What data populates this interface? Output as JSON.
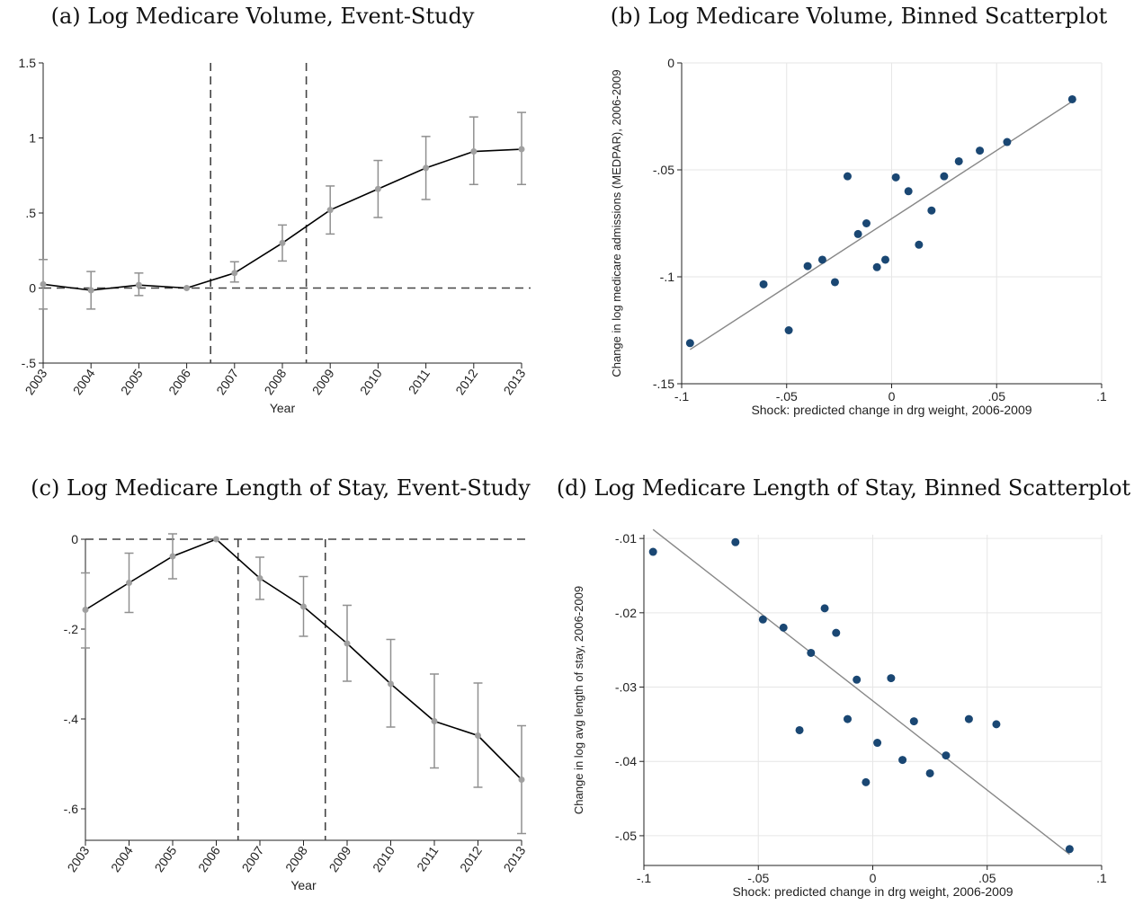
{
  "chart_data": [
    {
      "id": "a",
      "type": "line",
      "title": "(a) Log Medicare Volume, Event-Study",
      "xlabel": "Year",
      "ylabel": "",
      "x": [
        2003,
        2004,
        2005,
        2006,
        2007,
        2008,
        2009,
        2010,
        2011,
        2012,
        2013
      ],
      "xticks": [
        "2003",
        "2004",
        "2005",
        "2006",
        "2007",
        "2008",
        "2009",
        "2010",
        "2011",
        "2012",
        "2013"
      ],
      "y": [
        0.025,
        -0.015,
        0.02,
        0,
        0.1,
        0.3,
        0.52,
        0.66,
        0.8,
        0.91,
        0.925
      ],
      "ci_low": [
        -0.14,
        -0.14,
        -0.05,
        0,
        0.04,
        0.18,
        0.36,
        0.47,
        0.59,
        0.69,
        0.69
      ],
      "ci_high": [
        0.19,
        0.11,
        0.1,
        0,
        0.175,
        0.42,
        0.68,
        0.85,
        1.01,
        1.14,
        1.17
      ],
      "ylim": [
        -0.5,
        1.5
      ],
      "yticks": [
        -0.5,
        0,
        0.5,
        1,
        1.5
      ],
      "ytick_labels": [
        "-.5",
        "0",
        ".5",
        "1",
        "1.5"
      ],
      "hline": 0,
      "vlines": [
        2006.5,
        2008.5
      ]
    },
    {
      "id": "b",
      "type": "scatter",
      "title": "(b) Log Medicare Volume, Binned Scatterplot",
      "xlabel": "Shock: predicted change in drg weight, 2006-2009",
      "ylabel": "Change in log medicare admissions (MEDPAR), 2006-2009",
      "points": [
        [
          -0.096,
          -0.131
        ],
        [
          -0.061,
          -0.1035
        ],
        [
          -0.049,
          -0.125
        ],
        [
          -0.04,
          -0.095
        ],
        [
          -0.033,
          -0.092
        ],
        [
          -0.027,
          -0.1025
        ],
        [
          -0.021,
          -0.053
        ],
        [
          -0.016,
          -0.08
        ],
        [
          -0.012,
          -0.075
        ],
        [
          -0.007,
          -0.0955
        ],
        [
          -0.003,
          -0.092
        ],
        [
          0.002,
          -0.0535
        ],
        [
          0.008,
          -0.06
        ],
        [
          0.013,
          -0.085
        ],
        [
          0.019,
          -0.069
        ],
        [
          0.025,
          -0.053
        ],
        [
          0.032,
          -0.046
        ],
        [
          0.042,
          -0.041
        ],
        [
          0.055,
          -0.037
        ],
        [
          0.086,
          -0.017
        ]
      ],
      "fit": [
        [
          -0.096,
          -0.134
        ],
        [
          0.086,
          -0.018
        ]
      ],
      "xlim": [
        -0.1,
        0.1
      ],
      "ylim": [
        -0.15,
        0
      ],
      "xticks": [
        -0.1,
        -0.05,
        0,
        0.05,
        0.1
      ],
      "xtick_labels": [
        "-.1",
        "-.05",
        "0",
        ".05",
        ".1"
      ],
      "yticks": [
        -0.15,
        -0.1,
        -0.05,
        0
      ],
      "ytick_labels": [
        "-.15",
        "-.1",
        "-.05",
        "0"
      ]
    },
    {
      "id": "c",
      "type": "line",
      "title": "(c) Log Medicare Length of Stay, Event-Study",
      "xlabel": "Year",
      "ylabel": "",
      "x": [
        2003,
        2004,
        2005,
        2006,
        2007,
        2008,
        2009,
        2010,
        2011,
        2012,
        2013
      ],
      "xticks": [
        "2003",
        "2004",
        "2005",
        "2006",
        "2007",
        "2008",
        "2009",
        "2010",
        "2011",
        "2012",
        "2013"
      ],
      "y": [
        -0.157,
        -0.097,
        -0.038,
        0,
        -0.087,
        -0.15,
        -0.232,
        -0.322,
        -0.405,
        -0.437,
        -0.535
      ],
      "ci_low": [
        -0.242,
        -0.163,
        -0.088,
        0,
        -0.134,
        -0.216,
        -0.316,
        -0.418,
        -0.509,
        -0.552,
        -0.655
      ],
      "ci_high": [
        -0.075,
        -0.031,
        0.012,
        0,
        -0.04,
        -0.083,
        -0.147,
        -0.223,
        -0.3,
        -0.32,
        -0.415
      ],
      "ylim": [
        -0.67,
        0
      ],
      "yticks": [
        -0.6,
        -0.4,
        -0.2,
        0
      ],
      "ytick_labels": [
        "-.6",
        "-.4",
        "-.2",
        "0"
      ],
      "hline": 0,
      "vlines": [
        2006.5,
        2008.5
      ]
    },
    {
      "id": "d",
      "type": "scatter",
      "title": "(d) Log Medicare Length of Stay, Binned Scatterplot",
      "xlabel": "Shock: predicted change in drg weight, 2006-2009",
      "ylabel": "Change in log avg length of stay, 2006-2009",
      "points": [
        [
          -0.096,
          -0.0118
        ],
        [
          -0.06,
          -0.0105
        ],
        [
          -0.048,
          -0.0209
        ],
        [
          -0.039,
          -0.022
        ],
        [
          -0.032,
          -0.0358
        ],
        [
          -0.027,
          -0.0254
        ],
        [
          -0.021,
          -0.0194
        ],
        [
          -0.016,
          -0.0227
        ],
        [
          -0.011,
          -0.0343
        ],
        [
          -0.007,
          -0.029
        ],
        [
          -0.003,
          -0.0428
        ],
        [
          0.002,
          -0.0375
        ],
        [
          0.008,
          -0.0288
        ],
        [
          0.013,
          -0.0398
        ],
        [
          0.018,
          -0.0346
        ],
        [
          0.025,
          -0.0416
        ],
        [
          0.032,
          -0.0392
        ],
        [
          0.042,
          -0.0343
        ],
        [
          0.054,
          -0.035
        ],
        [
          0.086,
          -0.0518
        ]
      ],
      "fit": [
        [
          -0.096,
          -0.0088
        ],
        [
          0.086,
          -0.0525
        ]
      ],
      "xlim": [
        -0.1,
        0.1
      ],
      "ylim": [
        -0.054,
        -0.0095
      ],
      "xticks": [
        -0.1,
        -0.05,
        0,
        0.05,
        0.1
      ],
      "xtick_labels": [
        "-.1",
        "-.05",
        "0",
        ".05",
        ".1"
      ],
      "yticks": [
        -0.05,
        -0.04,
        -0.03,
        -0.02,
        -0.01
      ],
      "ytick_labels": [
        "-.05",
        "-.04",
        "-.03",
        "-.02",
        "-.01"
      ]
    }
  ],
  "colors": {
    "event_line": "#000000",
    "event_marker": "#a0a0a0",
    "ci": "#909090",
    "dashed": "#444444",
    "scatter_dot": "#1a4773",
    "fit_line": "#888888",
    "grid": "#e6e6e6"
  }
}
